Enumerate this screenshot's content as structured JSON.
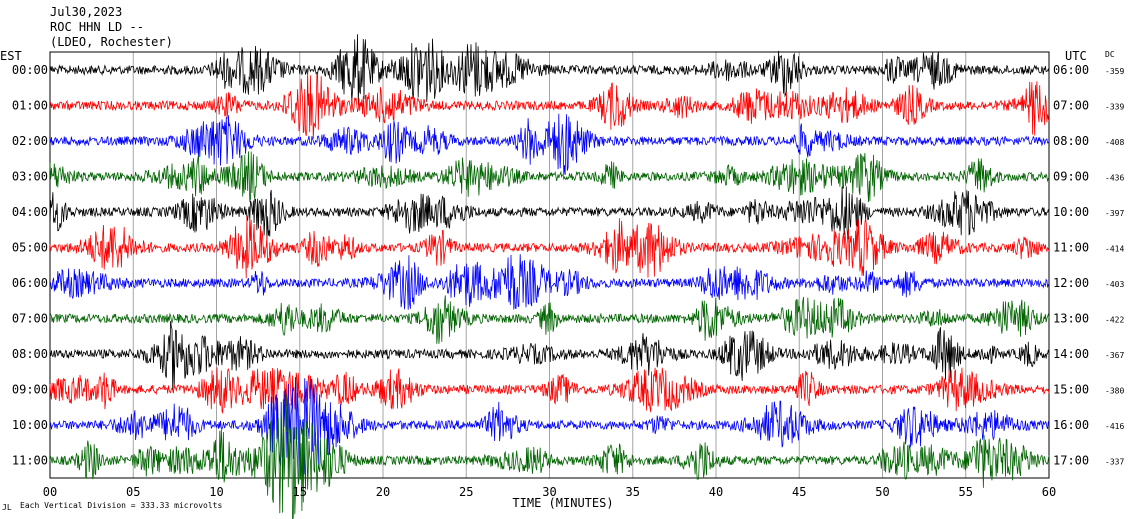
{
  "header": {
    "date": "Jul30,2023",
    "station": "ROC HHN LD --",
    "location": "(LDEO, Rochester)"
  },
  "left_zone_label": "EST",
  "right_zone_label": "UTC",
  "dc_label": "DC",
  "footer": {
    "scale_text": "Each Vertical Division =  333.33 microvolts",
    "corner_mark": "JL"
  },
  "chart_data": {
    "type": "line",
    "xlabel": "TIME (MINUTES)",
    "xlim": [
      0,
      60
    ],
    "xticks": [
      "00",
      "05",
      "10",
      "15",
      "20",
      "25",
      "30",
      "35",
      "40",
      "45",
      "50",
      "55",
      "60"
    ],
    "series_colors": [
      "#000000",
      "#ff0000",
      "#0000ff",
      "#006400"
    ],
    "rows": [
      {
        "est": "00:00",
        "utc": "06:00",
        "dc": "-359",
        "color": "#000000"
      },
      {
        "est": "01:00",
        "utc": "07:00",
        "dc": "-339",
        "color": "#ff0000"
      },
      {
        "est": "02:00",
        "utc": "08:00",
        "dc": "-408",
        "color": "#0000ff"
      },
      {
        "est": "03:00",
        "utc": "09:00",
        "dc": "-436",
        "color": "#006400"
      },
      {
        "est": "04:00",
        "utc": "10:00",
        "dc": "-397",
        "color": "#000000"
      },
      {
        "est": "05:00",
        "utc": "11:00",
        "dc": "-414",
        "color": "#ff0000"
      },
      {
        "est": "06:00",
        "utc": "12:00",
        "dc": "-403",
        "color": "#0000ff"
      },
      {
        "est": "07:00",
        "utc": "13:00",
        "dc": "-422",
        "color": "#006400"
      },
      {
        "est": "08:00",
        "utc": "14:00",
        "dc": "-367",
        "color": "#000000"
      },
      {
        "est": "09:00",
        "utc": "15:00",
        "dc": "-380",
        "color": "#ff0000"
      },
      {
        "est": "10:00",
        "utc": "16:00",
        "dc": "-416",
        "color": "#0000ff"
      },
      {
        "est": "11:00",
        "utc": "17:00",
        "dc": "-337",
        "color": "#006400"
      }
    ],
    "events": [
      {
        "row": 10,
        "minute": 15.0,
        "amplitude": 3.2
      },
      {
        "row": 11,
        "minute": 14.4,
        "amplitude": 4.5
      }
    ]
  }
}
